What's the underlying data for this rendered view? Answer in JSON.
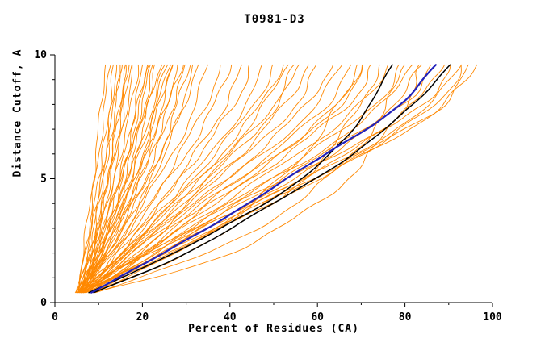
{
  "chart_data": {
    "type": "line",
    "title": "T0981-D3",
    "xlabel": "Percent of Residues (CA)",
    "ylabel": "Distance Cutoff, A",
    "xlim": [
      0,
      100
    ],
    "ylim": [
      0,
      10
    ],
    "x_major_ticks": [
      0,
      20,
      40,
      60,
      80,
      100
    ],
    "x_tick_labels": [
      "0",
      "20",
      "40",
      "60",
      "80",
      "100"
    ],
    "x_minor_step": 10,
    "y_major_ticks": [
      0,
      5,
      10
    ],
    "y_tick_labels": [
      "0",
      "5",
      "10"
    ],
    "y_minor_step": 1,
    "grid": false,
    "legend": "none",
    "cutoffs": [
      0.4,
      2,
      4,
      6,
      8,
      9.6
    ],
    "colors": {
      "predictions": "#ff8800",
      "highlight_black": "#000000",
      "highlight_blue": "#2222bb",
      "axis": "#000000"
    },
    "series_groups": [
      {
        "name": "predictions",
        "color": "#ff8800",
        "width": 0.9,
        "curves": [
          [
            5,
            6.5,
            8,
            9.5,
            10.5,
            11.5
          ],
          [
            5.2,
            7,
            8.5,
            10,
            11.5,
            12.5
          ],
          [
            5.5,
            7.5,
            9.5,
            11,
            12.5,
            13.5
          ],
          [
            5,
            7,
            9,
            11.5,
            13,
            14
          ],
          [
            5.5,
            8,
            10,
            12,
            14,
            15
          ],
          [
            6,
            8.5,
            11,
            13,
            15,
            16
          ],
          [
            5,
            8,
            11,
            13.5,
            15.5,
            17
          ],
          [
            6,
            9,
            12,
            14.5,
            16.5,
            18
          ],
          [
            5.5,
            9,
            12.5,
            15,
            17.5,
            19
          ],
          [
            6,
            9.5,
            13,
            16,
            18.5,
            20
          ],
          [
            5,
            9,
            13,
            16.5,
            19,
            21
          ],
          [
            6.5,
            10,
            14,
            17,
            20,
            22
          ],
          [
            5.5,
            10,
            14.5,
            18,
            21,
            23
          ],
          [
            6,
            10.5,
            15,
            18.5,
            21.5,
            24
          ],
          [
            5,
            10,
            15,
            19,
            22.5,
            25
          ],
          [
            6.5,
            11,
            16,
            20,
            23.5,
            26
          ],
          [
            5.5,
            11,
            16.5,
            21,
            24.5,
            27
          ],
          [
            6,
            11.5,
            17,
            21.5,
            25.5,
            28
          ],
          [
            5,
            11,
            17,
            22,
            26,
            29
          ],
          [
            6.5,
            12,
            18,
            23,
            27,
            30
          ],
          [
            5.5,
            12,
            18.5,
            24,
            28,
            31
          ],
          [
            6,
            12.5,
            19,
            24.5,
            29,
            32
          ],
          [
            5,
            8,
            10,
            12,
            13.5,
            15
          ],
          [
            6,
            9,
            11.5,
            14,
            16,
            17.5
          ],
          [
            5.5,
            8.5,
            11,
            13,
            15,
            16.5
          ],
          [
            6,
            10,
            13.5,
            16.5,
            19.5,
            21.5
          ],
          [
            5,
            9.5,
            14,
            17.5,
            20.5,
            22.5
          ],
          [
            6.5,
            11.5,
            16,
            20.5,
            24,
            26.5
          ],
          [
            5.5,
            10.5,
            15.5,
            19.5,
            23,
            25.5
          ],
          [
            6,
            13,
            19.5,
            25,
            29.5,
            33
          ],
          [
            6,
            13,
            20,
            27,
            32,
            35
          ],
          [
            6.5,
            14,
            21.5,
            28.5,
            34.5,
            38
          ],
          [
            5.5,
            13.5,
            22,
            30,
            36.5,
            40
          ],
          [
            7,
            15,
            24,
            32,
            39,
            43
          ],
          [
            6,
            14.5,
            24,
            33,
            41,
            45
          ],
          [
            6.5,
            16,
            26,
            35.5,
            43.5,
            48
          ],
          [
            5.5,
            15,
            26,
            36.5,
            45.5,
            50
          ],
          [
            7,
            17,
            28,
            39,
            48,
            53
          ],
          [
            6,
            16,
            28,
            40,
            50,
            55
          ],
          [
            6.5,
            18,
            30,
            42.5,
            52.5,
            58
          ],
          [
            5.5,
            17,
            30,
            44,
            55,
            60
          ],
          [
            7,
            19,
            32,
            46,
            57.5,
            63
          ],
          [
            6,
            18,
            32,
            47.5,
            60,
            65
          ],
          [
            6.5,
            20,
            34,
            49.5,
            62,
            68
          ],
          [
            5.5,
            19,
            34,
            51,
            64.5,
            70
          ],
          [
            7.5,
            21,
            36,
            52,
            65,
            71
          ],
          [
            6,
            15,
            27,
            38,
            47,
            52
          ],
          [
            7,
            16.5,
            29,
            41,
            51,
            56
          ],
          [
            6,
            20,
            36,
            53,
            67,
            73
          ],
          [
            7,
            21,
            38,
            55.5,
            70,
            76
          ],
          [
            6.5,
            22,
            40,
            58,
            73,
            79
          ],
          [
            5.5,
            21,
            40,
            59.5,
            75,
            81
          ],
          [
            7,
            23,
            42,
            61.5,
            77.5,
            84
          ],
          [
            6,
            22,
            42,
            63,
            79.5,
            86
          ],
          [
            7.5,
            24,
            44,
            65,
            82,
            88
          ],
          [
            6.5,
            23,
            45,
            66.5,
            84,
            90
          ],
          [
            7,
            25,
            46,
            68,
            86,
            92
          ],
          [
            6,
            24,
            47,
            70,
            88.5,
            95
          ],
          [
            8,
            26,
            48,
            70,
            87,
            93
          ],
          [
            7,
            26,
            49,
            71,
            89,
            96
          ],
          [
            8,
            30,
            50,
            62,
            70,
            74
          ],
          [
            9,
            35,
            55,
            68,
            76,
            80
          ],
          [
            10,
            40,
            60,
            72,
            80,
            84
          ],
          [
            8,
            28,
            45,
            57,
            65,
            69
          ]
        ]
      },
      {
        "name": "highlight-black",
        "color": "#000000",
        "width": 1.5,
        "curves": [
          [
            8,
            27,
            48,
            63,
            72,
            77
          ],
          [
            9,
            30,
            50,
            68,
            82,
            90
          ]
        ]
      },
      {
        "name": "highlight-blue",
        "color": "#2222bb",
        "width": 2.2,
        "curves": [
          [
            8,
            25,
            44,
            62,
            79,
            87
          ]
        ]
      }
    ]
  }
}
